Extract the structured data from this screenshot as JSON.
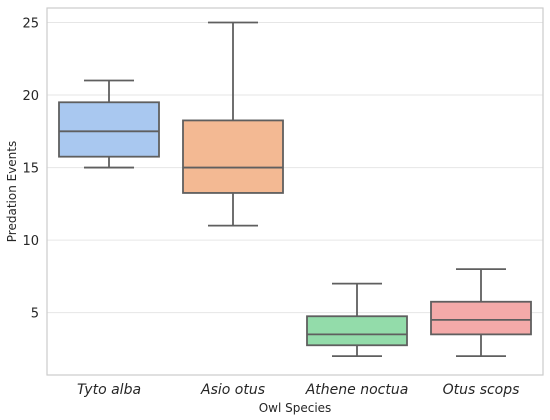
{
  "chart_data": {
    "type": "box",
    "xlabel": "Owl Species",
    "ylabel": "Predation Events",
    "ylim": [
      0.7,
      26.0
    ],
    "yticks": [
      5,
      10,
      15,
      20,
      25
    ],
    "grid": "horizontal",
    "categories": [
      "Tyto alba",
      "Asio otus",
      "Athene noctua",
      "Otus scops"
    ],
    "boxes": [
      {
        "category": "Tyto alba",
        "min": 15,
        "q1": 15.75,
        "median": 17.5,
        "q3": 19.5,
        "max": 21,
        "color": "#a9c8f0"
      },
      {
        "category": "Asio otus",
        "min": 11,
        "q1": 13.25,
        "median": 15,
        "q3": 18.25,
        "max": 25,
        "color": "#f3b993"
      },
      {
        "category": "Athene noctua",
        "min": 2,
        "q1": 2.75,
        "median": 3.5,
        "q3": 4.75,
        "max": 7,
        "color": "#93dcaa"
      },
      {
        "category": "Otus scops",
        "min": 2,
        "q1": 3.5,
        "median": 4.5,
        "q3": 5.75,
        "max": 8,
        "color": "#f4aaa9"
      }
    ]
  },
  "colors": {
    "frame": "#cccccc",
    "grid": "#e6e6e6",
    "line": "#5f5f5f"
  }
}
